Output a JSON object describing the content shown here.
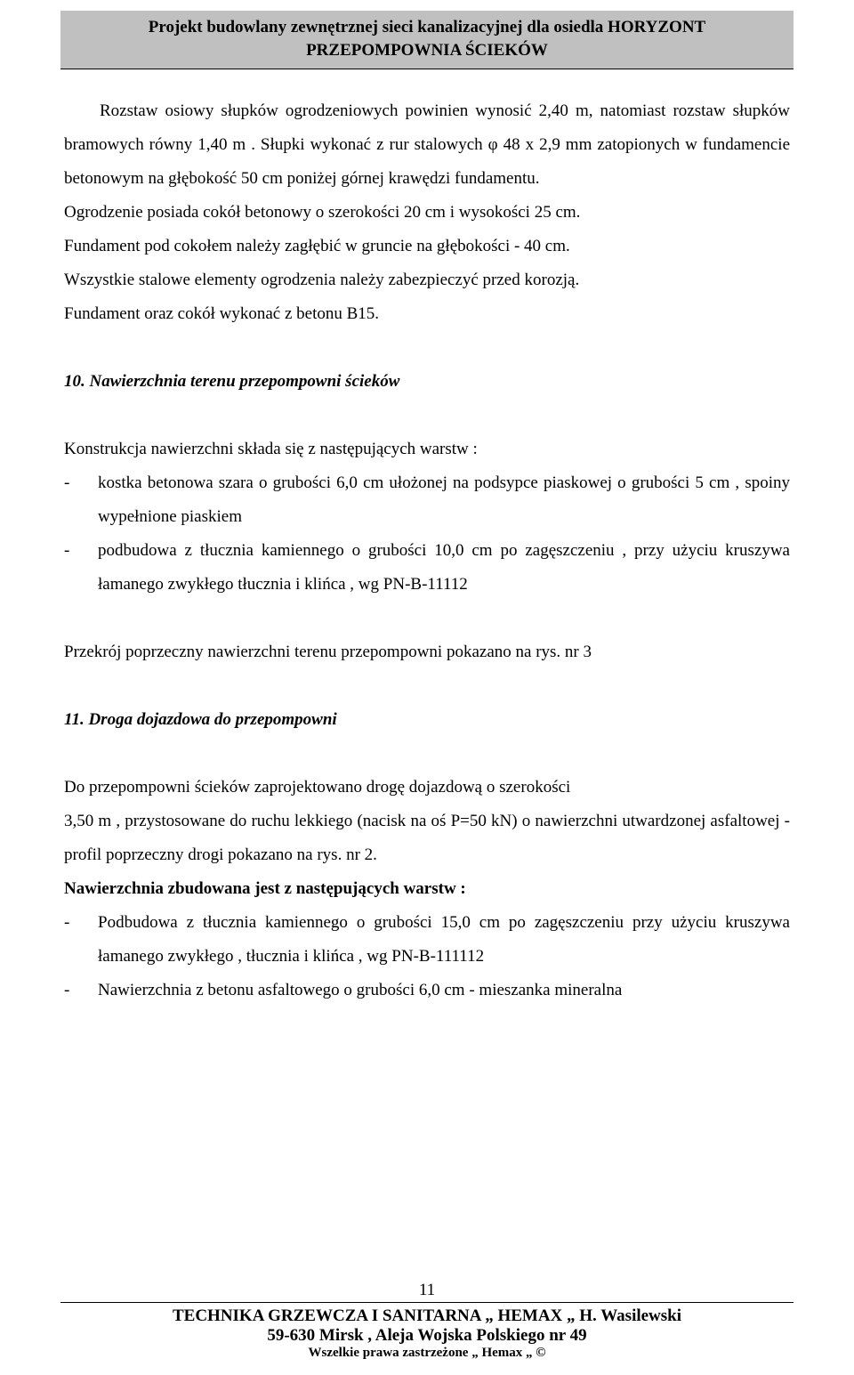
{
  "header": {
    "line1": "Projekt budowlany zewnętrznej sieci kanalizacyjnej dla osiedla HORYZONT",
    "line2": "PRZEPOMPOWNIA  ŚCIEKÓW"
  },
  "body": {
    "para1": "Rozstaw osiowy słupków ogrodzeniowych powinien wynosić 2,40 m, natomiast rozstaw słupków bramowych równy  1,40 m . Słupki  wykonać z rur stalowych  φ 48 x 2,9 mm zatopionych w fundamencie betonowym na głębokość 50 cm poniżej górnej krawędzi fundamentu.",
    "para2": "Ogrodzenie posiada cokół betonowy o szerokości 20 cm i wysokości 25 cm.",
    "para3": "Fundament pod cokołem należy zagłębić w gruncie na głębokości  - 40 cm.",
    "para4": "Wszystkie stalowe elementy ogrodzenia należy zabezpieczyć przed korozją.",
    "para5": "Fundament oraz cokół  wykonać z betonu B15.",
    "section10": {
      "heading": "10.  Nawierzchnia terenu przepompowni ścieków",
      "intro": "Konstrukcja  nawierzchni składa się  z następujących warstw :",
      "items": [
        "kostka betonowa szara o grubości 6,0 cm ułożonej na podsypce piaskowej o grubości  5 cm , spoiny wypełnione piaskiem",
        "podbudowa z tłucznia kamiennego o grubości 10,0 cm po zagęszczeniu , przy użyciu kruszywa łamanego zwykłego tłucznia i klińca , wg PN-B-11112"
      ],
      "after": "Przekrój poprzeczny nawierzchni terenu przepompowni pokazano na rys. nr 3"
    },
    "section11": {
      "heading": "11.  Droga dojazdowa do przepompowni",
      "p1": "Do przepompowni ścieków  zaprojektowano drogę dojazdową o szerokości",
      "p2": " 3,50 m , przystosowane do ruchu lekkiego (nacisk na oś P=50 kN) o nawierzchni utwardzonej  asfaltowej  - profil poprzeczny drogi pokazano na rys. nr 2.",
      "sub": " Nawierzchnia zbudowana jest z następujących warstw :",
      "items": [
        "Podbudowa z tłucznia kamiennego o grubości 15,0 cm po zagęszczeniu przy użyciu kruszywa łamanego zwykłego , tłucznia i klińca , wg PN-B-111112",
        "Nawierzchnia z betonu asfaltowego o grubości 6,0 cm - mieszanka mineralna"
      ]
    }
  },
  "footer": {
    "pagenum": "11",
    "line1_a": "TECHNIKA GRZEWCZA I SANITARNA  „ ",
    "line1_b": "H",
    "line1_c": "EMAX „    H. Wasilewski",
    "line2": "59-630 Mirsk , Aleja Wojska Polskiego nr 49",
    "line3": "Wszelkie prawa zastrzeżone „ Hemax „ ©"
  }
}
